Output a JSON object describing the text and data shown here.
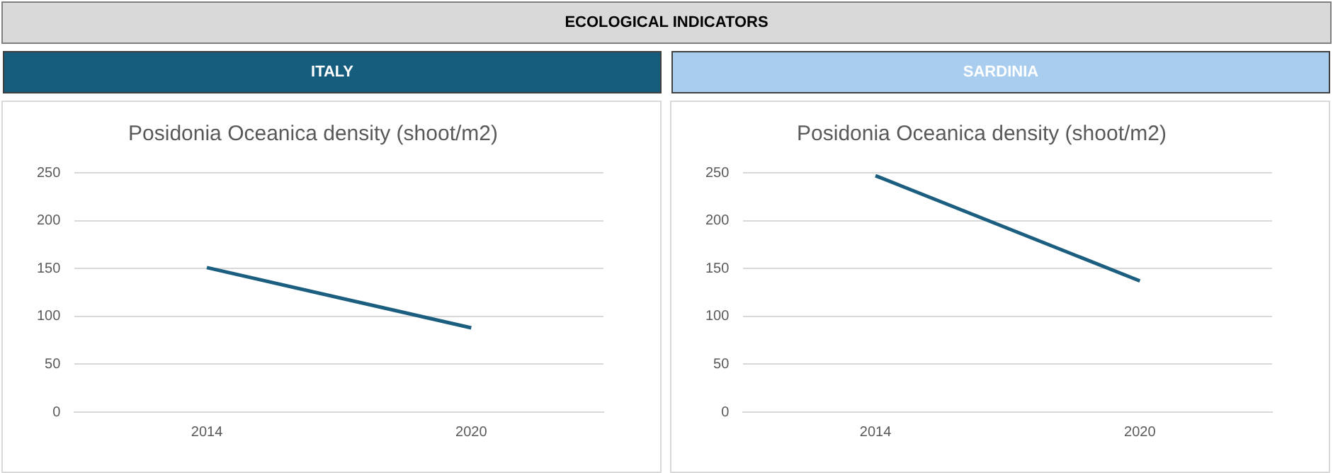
{
  "chart_data": [
    {
      "type": "line",
      "title": "Posidonia Oceanica density (shoot/m2)",
      "subtitle": "ITALY",
      "annotations": [
        "ECOLOGICAL INDICATORS"
      ],
      "categories": [
        "2014",
        "2020"
      ],
      "series": [
        {
          "color": "#1b5e7f",
          "values": [
            151,
            88
          ]
        }
      ],
      "ylim": [
        0,
        250
      ],
      "yticks": [
        0,
        50,
        100,
        150,
        200,
        250
      ],
      "grid": "y",
      "legend": false,
      "marker": "none",
      "line_style": "solid"
    },
    {
      "type": "line",
      "title": "Posidonia Oceanica density (shoot/m2)",
      "subtitle": "SARDINIA",
      "categories": [
        "2014",
        "2020"
      ],
      "series": [
        {
          "color": "#1b5e7f",
          "values": [
            247,
            137
          ]
        }
      ],
      "ylim": [
        0,
        250
      ],
      "yticks": [
        0,
        50,
        100,
        150,
        200,
        250
      ],
      "grid": "y",
      "legend": false,
      "marker": "none",
      "line_style": "solid"
    }
  ]
}
